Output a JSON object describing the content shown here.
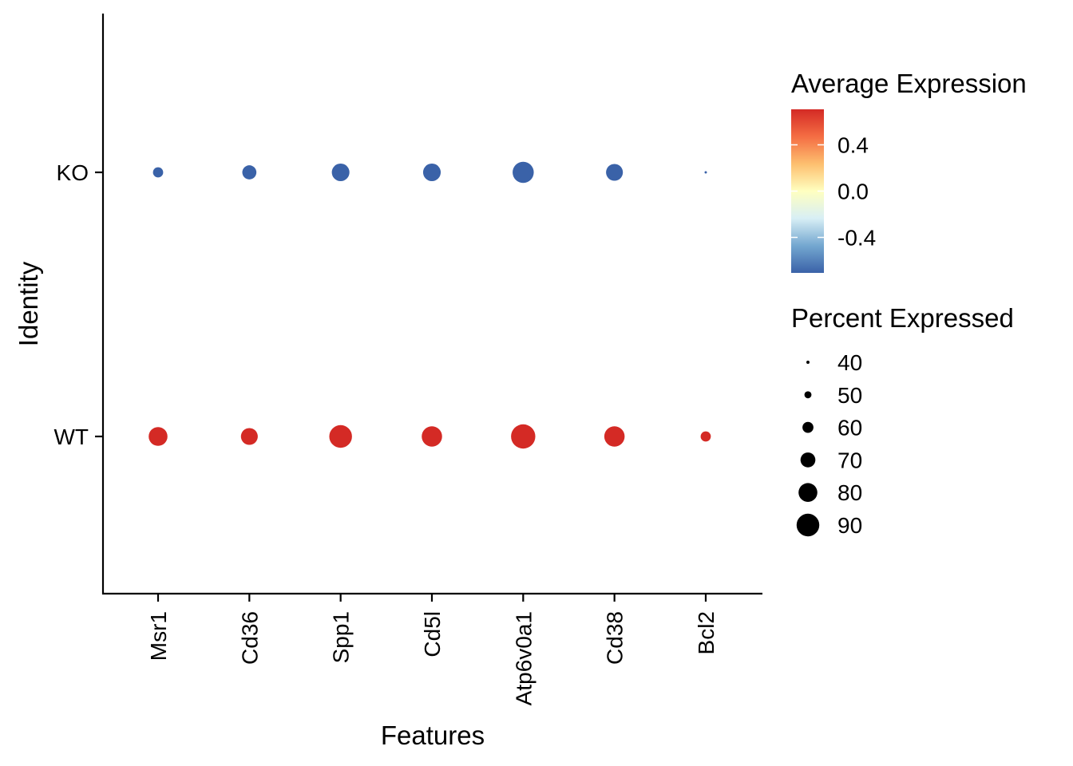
{
  "chart_data": {
    "type": "scatter",
    "subtype": "dot-plot",
    "xlabel": "Features",
    "ylabel": "Identity",
    "features": [
      "Msr1",
      "Cd36",
      "Spp1",
      "Cd5l",
      "Atp6v0a1",
      "Cd38",
      "Bcl2"
    ],
    "identities": [
      "KO",
      "WT"
    ],
    "points": [
      {
        "feature": "Msr1",
        "identity": "KO",
        "pct_exp": 58,
        "avg_exp": -0.707
      },
      {
        "feature": "Cd36",
        "identity": "KO",
        "pct_exp": 68,
        "avg_exp": -0.707
      },
      {
        "feature": "Spp1",
        "identity": "KO",
        "pct_exp": 77,
        "avg_exp": -0.707
      },
      {
        "feature": "Cd5l",
        "identity": "KO",
        "pct_exp": 77,
        "avg_exp": -0.707
      },
      {
        "feature": "Atp6v0a1",
        "identity": "KO",
        "pct_exp": 86,
        "avg_exp": -0.707
      },
      {
        "feature": "Cd38",
        "identity": "KO",
        "pct_exp": 75,
        "avg_exp": -0.707
      },
      {
        "feature": "Bcl2",
        "identity": "KO",
        "pct_exp": 38,
        "avg_exp": -0.707
      },
      {
        "feature": "Msr1",
        "identity": "WT",
        "pct_exp": 80,
        "avg_exp": 0.707
      },
      {
        "feature": "Cd36",
        "identity": "WT",
        "pct_exp": 75,
        "avg_exp": 0.707
      },
      {
        "feature": "Spp1",
        "identity": "WT",
        "pct_exp": 90,
        "avg_exp": 0.707
      },
      {
        "feature": "Cd5l",
        "identity": "WT",
        "pct_exp": 84,
        "avg_exp": 0.707
      },
      {
        "feature": "Atp6v0a1",
        "identity": "WT",
        "pct_exp": 94,
        "avg_exp": 0.707
      },
      {
        "feature": "Cd38",
        "identity": "WT",
        "pct_exp": 84,
        "avg_exp": 0.707
      },
      {
        "feature": "Bcl2",
        "identity": "WT",
        "pct_exp": 58,
        "avg_exp": 0.707
      }
    ],
    "color_legend": {
      "title": "Average Expression",
      "ticks": [
        0.4,
        0.0,
        -0.4
      ],
      "tick_labels": [
        "0.4",
        "0.0",
        "-0.4"
      ],
      "range": [
        -0.707,
        0.707
      ],
      "colors": [
        "#3a62a8",
        "#74a7d0",
        "#d8eff5",
        "#ffffc0",
        "#fdbf6f",
        "#f46d43",
        "#d42a25"
      ]
    },
    "size_legend": {
      "title": "Percent Expressed",
      "values": [
        40,
        50,
        60,
        70,
        80,
        90
      ],
      "labels": [
        "40",
        "50",
        "60",
        "70",
        "80",
        "90"
      ]
    },
    "grid": false,
    "legend_position": "right"
  }
}
